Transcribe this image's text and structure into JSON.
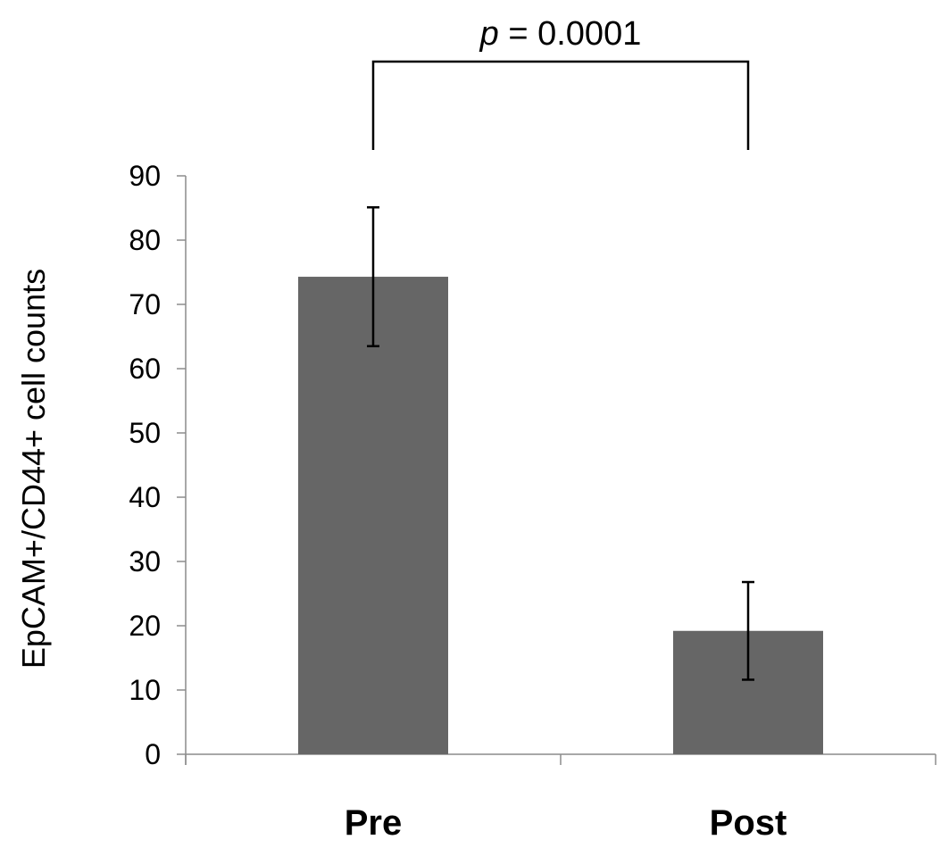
{
  "chart_data": {
    "type": "bar",
    "categories": [
      "Pre",
      "Post"
    ],
    "values": [
      74.3,
      19.2
    ],
    "error": [
      10.8,
      7.6
    ],
    "ylabel": "EpCAM+/CD44+ cell counts",
    "xlabel": "",
    "ylim": [
      0,
      90
    ],
    "yticks": [
      0,
      10,
      20,
      30,
      40,
      50,
      60,
      70,
      80,
      90
    ],
    "grid": false,
    "bar_color": "#666666",
    "annotation": {
      "prefix": "p",
      "suffix": " = 0.0001",
      "between": [
        "Pre",
        "Post"
      ]
    }
  }
}
